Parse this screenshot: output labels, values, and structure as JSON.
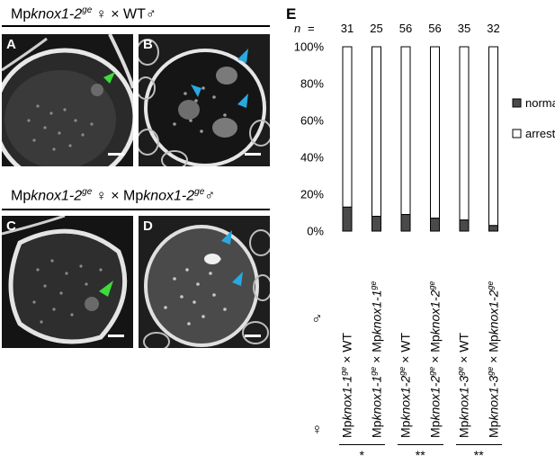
{
  "cross_top": {
    "prefix": "Mp",
    "gene": "knox1-2",
    "allele": "ge",
    "female_sym": "♀",
    "times": "×",
    "male": "WT",
    "male_sym": "♂"
  },
  "cross_bottom": {
    "prefix": "Mp",
    "gene": "knox1-2",
    "allele": "ge",
    "female_sym": "♀",
    "times": "×",
    "male_prefix": "Mp",
    "male_gene": "knox1-2",
    "male_allele": "ge",
    "male_sym": "♂"
  },
  "panels": {
    "A": "A",
    "B": "B",
    "C": "C",
    "D": "D",
    "E": "E"
  },
  "colors": {
    "normal": "#4a4a4a",
    "arrest": "#ffffff",
    "green_arrow": "#3ddc3d",
    "blue_arrow": "#29a9e0"
  },
  "sex_symbols": {
    "male": "♂",
    "female": "♀"
  },
  "chart_data": {
    "type": "bar",
    "stacked": true,
    "n_label": "n",
    "n_values": [
      31,
      25,
      56,
      56,
      35,
      32
    ],
    "yticks": [
      "0%",
      "20%",
      "40%",
      "60%",
      "80%",
      "100%"
    ],
    "ylim": [
      0,
      100
    ],
    "categories": [
      {
        "female_prefix": "Mp",
        "female_gene": "knox1-1",
        "female_allele": "ge",
        "times": "×",
        "male": "WT"
      },
      {
        "female_prefix": "Mp",
        "female_gene": "knox1-1",
        "female_allele": "ge",
        "times": "×",
        "male": "Mpknox1-1",
        "male_allele": "ge"
      },
      {
        "female_prefix": "Mp",
        "female_gene": "knox1-2",
        "female_allele": "ge",
        "times": "×",
        "male": "WT"
      },
      {
        "female_prefix": "Mp",
        "female_gene": "knox1-2",
        "female_allele": "ge",
        "times": "×",
        "male": "Mpknox1-2",
        "male_allele": "ge"
      },
      {
        "female_prefix": "Mp",
        "female_gene": "knox1-3",
        "female_allele": "ge",
        "times": "×",
        "male": "WT"
      },
      {
        "female_prefix": "Mp",
        "female_gene": "knox1-3",
        "female_allele": "ge",
        "times": "×",
        "male": "Mpknox1-2",
        "male_allele": "ge"
      }
    ],
    "series": [
      {
        "name": "normal",
        "values": [
          13,
          8,
          9,
          7,
          6,
          3
        ]
      },
      {
        "name": "arrest",
        "values": [
          87,
          92,
          91,
          93,
          94,
          97
        ]
      }
    ],
    "significance": [
      "*",
      "**",
      "**"
    ],
    "legend_position": "right"
  }
}
